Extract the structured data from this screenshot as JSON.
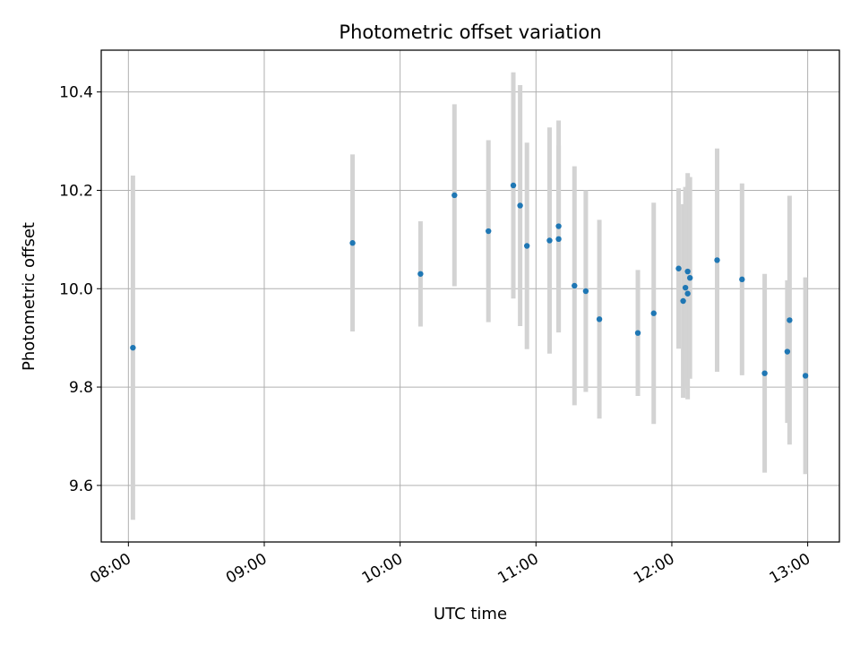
{
  "chart_data": {
    "type": "scatter",
    "title": "Photometric offset variation",
    "xlabel": "UTC time",
    "ylabel": "Photometric offset",
    "x_ticks": [
      "08:00",
      "09:00",
      "10:00",
      "11:00",
      "12:00",
      "13:00"
    ],
    "y_ticks": [
      "9.6",
      "9.8",
      "10.0",
      "10.2",
      "10.4"
    ],
    "xlim": [
      "07:48",
      "13:14"
    ],
    "ylim": [
      9.485,
      10.485
    ],
    "grid": true,
    "legend": "none",
    "colors": {
      "marker": "#1f77b4",
      "errorbar": "#d3d3d3",
      "grid": "#b0b0b0"
    },
    "points": [
      {
        "x": "08:02",
        "y": 9.88,
        "yerr": 0.35
      },
      {
        "x": "09:39",
        "y": 10.093,
        "yerr": 0.18
      },
      {
        "x": "10:09",
        "y": 10.03,
        "yerr": 0.107
      },
      {
        "x": "10:24",
        "y": 10.19,
        "yerr": 0.185
      },
      {
        "x": "10:39",
        "y": 10.117,
        "yerr": 0.185
      },
      {
        "x": "10:50",
        "y": 10.21,
        "yerr": 0.23
      },
      {
        "x": "10:53",
        "y": 10.169,
        "yerr": 0.245
      },
      {
        "x": "10:56",
        "y": 10.087,
        "yerr": 0.21
      },
      {
        "x": "11:06",
        "y": 10.098,
        "yerr": 0.23
      },
      {
        "x": "11:10",
        "y": 10.101,
        "yerr": 0.19
      },
      {
        "x": "11:10",
        "y": 10.127,
        "yerr": 0.215
      },
      {
        "x": "11:17",
        "y": 10.006,
        "yerr": 0.243
      },
      {
        "x": "11:22",
        "y": 9.995,
        "yerr": 0.205
      },
      {
        "x": "11:28",
        "y": 9.938,
        "yerr": 0.202
      },
      {
        "x": "11:45",
        "y": 9.91,
        "yerr": 0.128
      },
      {
        "x": "11:52",
        "y": 9.95,
        "yerr": 0.225
      },
      {
        "x": "12:03",
        "y": 10.041,
        "yerr": 0.163
      },
      {
        "x": "12:05",
        "y": 9.975,
        "yerr": 0.197
      },
      {
        "x": "12:06",
        "y": 10.002,
        "yerr": 0.205
      },
      {
        "x": "12:07",
        "y": 10.035,
        "yerr": 0.2
      },
      {
        "x": "12:07",
        "y": 9.99,
        "yerr": 0.215
      },
      {
        "x": "12:08",
        "y": 10.022,
        "yerr": 0.205
      },
      {
        "x": "12:20",
        "y": 10.058,
        "yerr": 0.227
      },
      {
        "x": "12:31",
        "y": 10.019,
        "yerr": 0.195
      },
      {
        "x": "12:41",
        "y": 9.828,
        "yerr": 0.202
      },
      {
        "x": "12:51",
        "y": 9.872,
        "yerr": 0.145
      },
      {
        "x": "12:52",
        "y": 9.936,
        "yerr": 0.253
      },
      {
        "x": "12:59",
        "y": 9.823,
        "yerr": 0.2
      }
    ]
  }
}
